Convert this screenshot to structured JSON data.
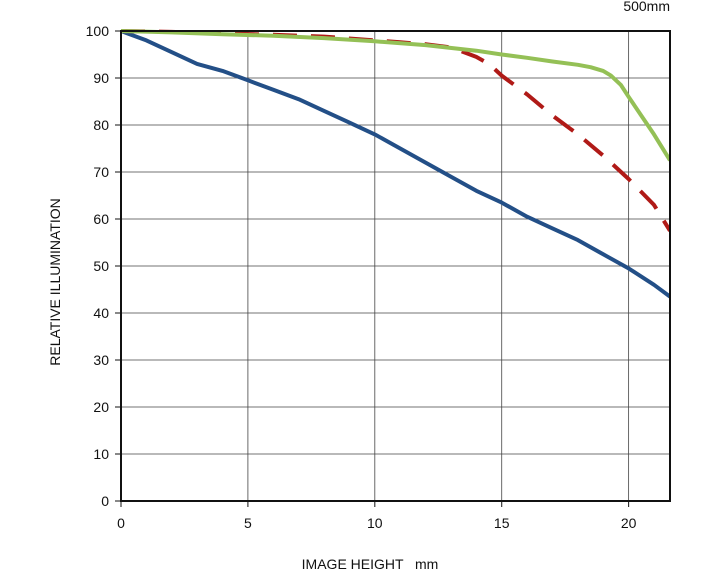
{
  "chart_data": {
    "type": "line",
    "title": "500mm",
    "xlabel": "IMAGE HEIGHT   mm",
    "ylabel": "RELATIVE ILLUMINATION",
    "xlim": [
      0,
      21.63
    ],
    "ylim": [
      0,
      100
    ],
    "xticks": [
      0,
      5,
      10,
      15,
      20
    ],
    "yticks": [
      0,
      10,
      20,
      30,
      40,
      50,
      60,
      70,
      80,
      90,
      100
    ],
    "grid": true,
    "series": [
      {
        "color": "#234f87",
        "dash": "solid",
        "x": [
          0,
          1,
          2,
          3,
          4,
          5,
          6,
          7,
          8,
          9,
          10,
          11,
          12,
          13,
          14,
          15,
          16,
          17,
          18,
          19,
          20,
          21,
          21.63
        ],
        "y": [
          100,
          98,
          95.5,
          93,
          91.5,
          89.5,
          87.5,
          85.5,
          83,
          80.5,
          78,
          75,
          72,
          69,
          66,
          63.5,
          60.5,
          58,
          55.5,
          52.5,
          49.5,
          46,
          43.5
        ]
      },
      {
        "color": "#b01a17",
        "dash": "dashed",
        "x": [
          0,
          2,
          4,
          6,
          8,
          10,
          11,
          12,
          13,
          14,
          14.5,
          15,
          16,
          17,
          18,
          19,
          20,
          21,
          21.63
        ],
        "y": [
          100,
          99.8,
          99.5,
          99.2,
          98.8,
          98,
          97.6,
          97.2,
          96.5,
          94.5,
          93,
          90.5,
          86.5,
          82,
          78,
          73.5,
          68.5,
          63,
          57.5
        ]
      },
      {
        "color": "#94c056",
        "dash": "solid",
        "x": [
          0,
          2,
          4,
          6,
          8,
          10,
          12,
          14,
          15,
          16,
          17,
          18,
          18.5,
          19,
          19.3,
          19.7,
          20,
          20.5,
          21,
          21.63
        ],
        "y": [
          100,
          99.7,
          99.3,
          99,
          98.5,
          97.8,
          97,
          95.8,
          95,
          94.3,
          93.5,
          92.8,
          92.3,
          91.5,
          90.5,
          88.5,
          86,
          82,
          78,
          72.5
        ]
      }
    ]
  }
}
